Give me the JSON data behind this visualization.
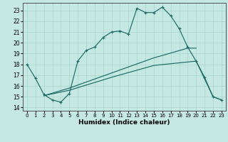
{
  "xlabel": "Humidex (Indice chaleur)",
  "background_color": "#c5e8e3",
  "grid_color": "#a8d4ce",
  "line_color": "#1e6b65",
  "xlim": [
    -0.5,
    23.5
  ],
  "ylim": [
    13.7,
    23.7
  ],
  "yticks": [
    14,
    15,
    16,
    17,
    18,
    19,
    20,
    21,
    22,
    23
  ],
  "xticks": [
    0,
    1,
    2,
    3,
    4,
    5,
    6,
    7,
    8,
    9,
    10,
    11,
    12,
    13,
    14,
    15,
    16,
    17,
    18,
    19,
    20,
    21,
    22,
    23
  ],
  "main_x": [
    0,
    1,
    2,
    3,
    4,
    5,
    6,
    7,
    8,
    9,
    10,
    11,
    12,
    13,
    14,
    15,
    16,
    17,
    18,
    19,
    20,
    21,
    22,
    23
  ],
  "main_y": [
    18.0,
    16.7,
    15.2,
    14.7,
    14.5,
    15.3,
    18.3,
    19.3,
    19.6,
    20.5,
    21.0,
    21.1,
    20.8,
    23.2,
    22.8,
    22.8,
    23.3,
    22.5,
    21.3,
    19.6,
    18.3,
    16.8,
    15.0,
    14.7
  ],
  "line2_x": [
    2,
    5,
    10,
    15,
    19,
    20
  ],
  "line2_y": [
    15.1,
    15.8,
    17.2,
    18.6,
    19.5,
    19.5
  ],
  "line3_x": [
    2,
    5,
    10,
    15,
    20,
    22,
    23
  ],
  "line3_y": [
    15.1,
    15.6,
    16.8,
    17.9,
    18.3,
    15.0,
    14.7
  ]
}
